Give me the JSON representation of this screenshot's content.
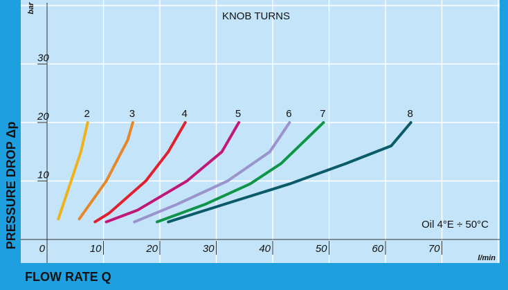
{
  "chart_data": {
    "type": "line",
    "title": "KNOB TURNS",
    "xlabel": "FLOW RATE Q",
    "ylabel": "PRESSURE DROP Δp",
    "x_unit": "l/min",
    "y_unit": "bar",
    "xlim": [
      0,
      80
    ],
    "ylim": [
      0,
      40
    ],
    "xticks": [
      "0",
      "10",
      "20",
      "30",
      "40",
      "50",
      "60",
      "70"
    ],
    "yticks": [
      "10",
      "20",
      "30"
    ],
    "grid": true,
    "annotation": "Oil 4°E ÷ 50°C",
    "series": [
      {
        "name": "2",
        "color": "#f0b21a",
        "points": [
          [
            2,
            3.5
          ],
          [
            6,
            15
          ],
          [
            7.2,
            20
          ]
        ]
      },
      {
        "name": "3",
        "color": "#e8862a",
        "points": [
          [
            5.7,
            3.5
          ],
          [
            10.5,
            10
          ],
          [
            14.3,
            17
          ],
          [
            15.2,
            20
          ]
        ]
      },
      {
        "name": "4",
        "color": "#e0202e",
        "points": [
          [
            8.5,
            3
          ],
          [
            11,
            4.5
          ],
          [
            17.5,
            10
          ],
          [
            21.5,
            15
          ],
          [
            24.5,
            20
          ]
        ]
      },
      {
        "name": "5",
        "color": "#c01878",
        "points": [
          [
            10.5,
            3
          ],
          [
            16,
            5
          ],
          [
            24.8,
            10
          ],
          [
            31,
            15
          ],
          [
            34,
            20
          ]
        ]
      },
      {
        "name": "6",
        "color": "#9b93cc",
        "points": [
          [
            15.5,
            3
          ],
          [
            23,
            6
          ],
          [
            32,
            10
          ],
          [
            39.5,
            15
          ],
          [
            43,
            20
          ]
        ]
      },
      {
        "name": "7",
        "color": "#0f9448",
        "points": [
          [
            19.5,
            3
          ],
          [
            28,
            6
          ],
          [
            36,
            9.5
          ],
          [
            41.5,
            13
          ],
          [
            49,
            20
          ]
        ]
      },
      {
        "name": "8",
        "color": "#0a5a68",
        "points": [
          [
            21.5,
            3
          ],
          [
            33,
            6.5
          ],
          [
            43,
            9.5
          ],
          [
            53,
            13
          ],
          [
            61,
            16
          ],
          [
            64.5,
            20
          ]
        ]
      }
    ]
  }
}
